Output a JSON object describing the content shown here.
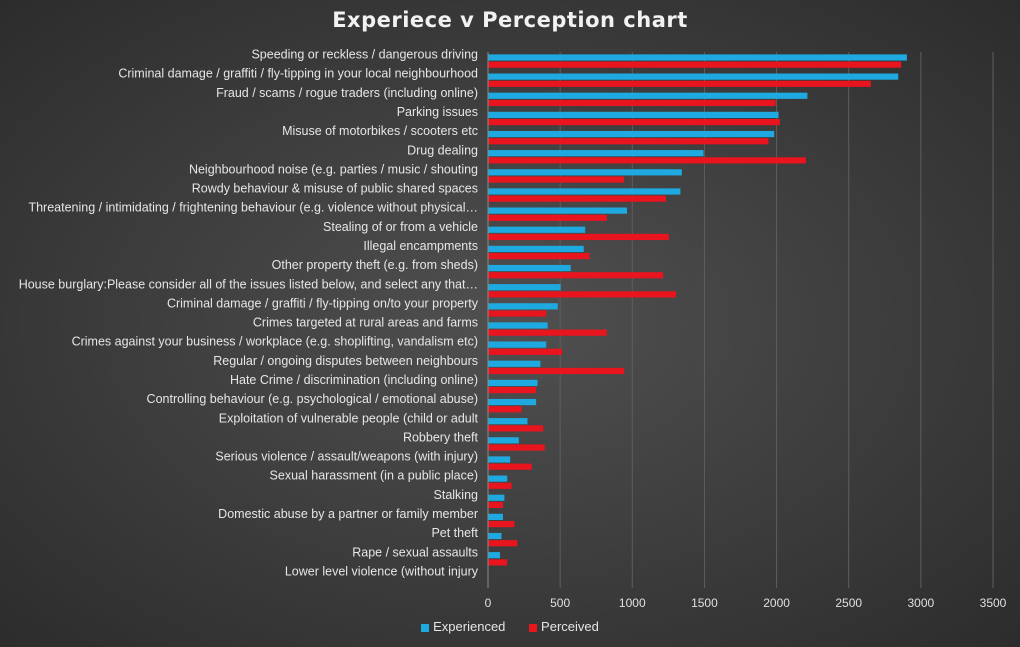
{
  "chart_data": {
    "type": "bar",
    "orientation": "horizontal",
    "title": "Experiece v Perception chart",
    "xlim": [
      0,
      3500
    ],
    "xticks": [
      0,
      500,
      1000,
      1500,
      2000,
      2500,
      3000,
      3500
    ],
    "grid": "vertical",
    "legend_position": "bottom",
    "categories": [
      "Speeding or reckless / dangerous driving",
      "Criminal damage / graffiti / fly-tipping in your local neighbourhood",
      "Fraud / scams / rogue traders (including online)",
      "Parking issues",
      "Misuse of motorbikes / scooters etc",
      "Drug dealing",
      "Neighbourhood noise (e.g. parties / music / shouting",
      "Rowdy behaviour & misuse of public shared spaces",
      "Threatening / intimidating / frightening behaviour (e.g. violence without physical…",
      "Stealing of or from a vehicle",
      "Illegal encampments",
      "Other property theft (e.g. from sheds)",
      "House burglary:Please consider all of the issues listed below, and select any that…",
      "Criminal damage / graffiti / fly-tipping on/to your property",
      "Crimes targeted at rural areas and farms",
      "Crimes against your business / workplace (e.g. shoplifting, vandalism etc)",
      "Regular / ongoing disputes between neighbours",
      "Hate Crime / discrimination (including online)",
      "Controlling behaviour (e.g. psychological / emotional abuse)",
      "Exploitation of vulnerable people (child or adult",
      "Robbery theft",
      "Serious violence / assault/weapons (with injury)",
      "Sexual harassment (in a public place)",
      "Stalking",
      "Domestic abuse by a partner or family member",
      "Pet theft",
      "Rape / sexual assaults",
      "Lower level violence (without injury"
    ],
    "series": [
      {
        "name": "Experienced",
        "color": "#1eaae1",
        "values": [
          2900,
          2840,
          2210,
          2010,
          1980,
          1490,
          1340,
          1330,
          960,
          670,
          660,
          570,
          500,
          480,
          410,
          400,
          360,
          340,
          330,
          270,
          210,
          150,
          130,
          110,
          100,
          90,
          80,
          0
        ]
      },
      {
        "name": "Perceived",
        "color": "#e8141e",
        "values": [
          2860,
          2650,
          1990,
          2020,
          1940,
          2200,
          940,
          1230,
          820,
          1250,
          700,
          1210,
          1300,
          400,
          820,
          510,
          940,
          330,
          230,
          380,
          390,
          300,
          160,
          100,
          180,
          200,
          130,
          0
        ]
      }
    ]
  }
}
